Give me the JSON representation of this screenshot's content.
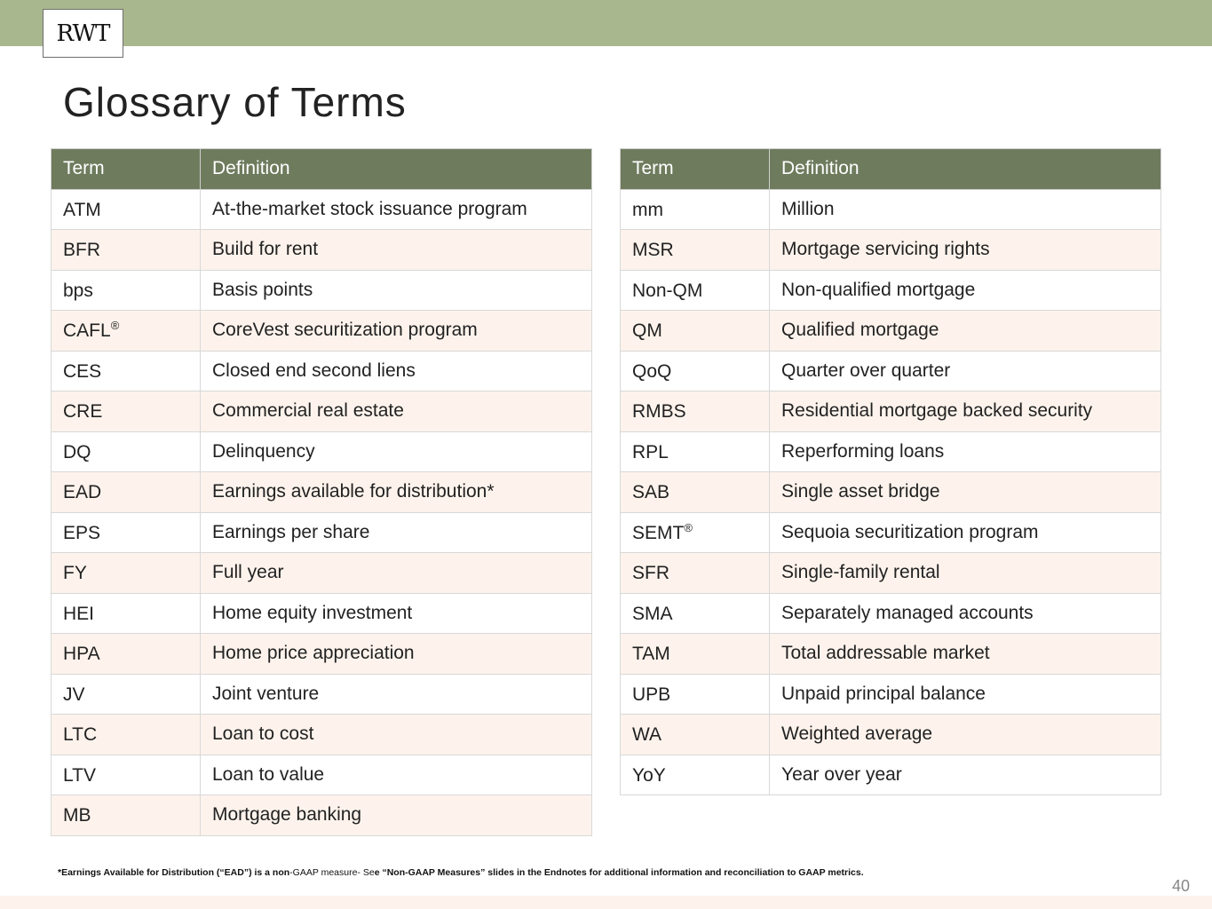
{
  "logo": "RWT",
  "title": "Glossary of Terms",
  "headers": {
    "term": "Term",
    "definition": "Definition"
  },
  "left": [
    {
      "term": "ATM",
      "sup": "",
      "def": "At-the-market stock issuance program"
    },
    {
      "term": "BFR",
      "sup": "",
      "def": "Build for rent"
    },
    {
      "term": "bps",
      "sup": "",
      "def": "Basis points"
    },
    {
      "term": "CAFL",
      "sup": "®",
      "def": "CoreVest securitization program"
    },
    {
      "term": "CES",
      "sup": "",
      "def": "Closed end second liens"
    },
    {
      "term": "CRE",
      "sup": "",
      "def": "Commercial real estate"
    },
    {
      "term": "DQ",
      "sup": "",
      "def": "Delinquency"
    },
    {
      "term": "EAD",
      "sup": "",
      "def": "Earnings available for distribution*"
    },
    {
      "term": "EPS",
      "sup": "",
      "def": "Earnings per share"
    },
    {
      "term": "FY",
      "sup": "",
      "def": "Full year"
    },
    {
      "term": "HEI",
      "sup": "",
      "def": "Home equity investment"
    },
    {
      "term": "HPA",
      "sup": "",
      "def": "Home price appreciation"
    },
    {
      "term": "JV",
      "sup": "",
      "def": "Joint venture"
    },
    {
      "term": "LTC",
      "sup": "",
      "def": "Loan to cost"
    },
    {
      "term": "LTV",
      "sup": "",
      "def": "Loan to value"
    },
    {
      "term": "MB",
      "sup": "",
      "def": "Mortgage banking"
    }
  ],
  "right": [
    {
      "term": "mm",
      "sup": "",
      "def": "Million"
    },
    {
      "term": "MSR",
      "sup": "",
      "def": "Mortgage servicing rights"
    },
    {
      "term": "Non-QM",
      "sup": "",
      "def": "Non-qualified mortgage"
    },
    {
      "term": "QM",
      "sup": "",
      "def": "Qualified mortgage"
    },
    {
      "term": "QoQ",
      "sup": "",
      "def": "Quarter over quarter"
    },
    {
      "term": "RMBS",
      "sup": "",
      "def": "Residential mortgage backed security"
    },
    {
      "term": "RPL",
      "sup": "",
      "def": "Reperforming loans"
    },
    {
      "term": "SAB",
      "sup": "",
      "def": "Single asset bridge"
    },
    {
      "term": "SEMT",
      "sup": "®",
      "def": "Sequoia securitization program"
    },
    {
      "term": "SFR",
      "sup": "",
      "def": "Single-family rental"
    },
    {
      "term": "SMA",
      "sup": "",
      "def": "Separately managed accounts"
    },
    {
      "term": "TAM",
      "sup": "",
      "def": "Total addressable market"
    },
    {
      "term": "UPB",
      "sup": "",
      "def": "Unpaid principal balance"
    },
    {
      "term": "WA",
      "sup": "",
      "def": "Weighted average"
    },
    {
      "term": "YoY",
      "sup": "",
      "def": "Year over year"
    }
  ],
  "footnote": {
    "part1": "*Earnings Available for Distribution (“EAD”) is a non",
    "part2": "-GAAP measure- Se",
    "part3": "e “Non-GAAP Measures” slides in the Endnotes for additional information and reconciliation to GAAP metrics."
  },
  "page_number": "40",
  "colors": {
    "header_bar": "#a9b78e",
    "table_header": "#6e7b5d",
    "alt_row": "#fdf3ec"
  }
}
